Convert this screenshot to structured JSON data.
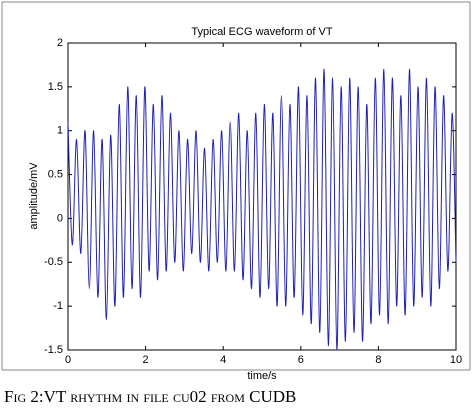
{
  "chart_data": {
    "type": "line",
    "title": "Typical ECG waveform of VT",
    "x_label": "time/s",
    "y_label": "amplitude/mV",
    "color": "#1f1fb4",
    "x": [
      0,
      0.11,
      0.22,
      0.33,
      0.44,
      0.55,
      0.66,
      0.77,
      0.88,
      0.99,
      1.1,
      1.21,
      1.32,
      1.43,
      1.54,
      1.65,
      1.76,
      1.87,
      1.98,
      2.09,
      2.2,
      2.31,
      2.42,
      2.53,
      2.64,
      2.75,
      2.86,
      2.97,
      3.08,
      3.19,
      3.3,
      3.41,
      3.52,
      3.63,
      3.74,
      3.85,
      3.96,
      4.07,
      4.18,
      4.29,
      4.4,
      4.51,
      4.62,
      4.73,
      4.84,
      4.95,
      5.06,
      5.17,
      5.28,
      5.39,
      5.5,
      5.61,
      5.72,
      5.83,
      5.94,
      6.05,
      6.16,
      6.27,
      6.38,
      6.49,
      6.6,
      6.71,
      6.82,
      6.93,
      7.04,
      7.15,
      7.26,
      7.37,
      7.48,
      7.59,
      7.7,
      7.81,
      7.92,
      8.03,
      8.14,
      8.25,
      8.36,
      8.47,
      8.58,
      8.69,
      8.8,
      8.91,
      9.02,
      9.13,
      9.24,
      9.35,
      9.46,
      9.57,
      9.68,
      9.79,
      9.9,
      10
    ],
    "values": [
      1.1,
      -0.3,
      0.9,
      -0.4,
      1.0,
      -0.8,
      1.0,
      -0.9,
      0.9,
      -1.15,
      0.95,
      -1.0,
      1.3,
      -0.9,
      1.5,
      -0.8,
      1.4,
      -0.9,
      1.5,
      -0.6,
      1.3,
      -0.7,
      1.4,
      -0.6,
      1.2,
      -0.5,
      1.0,
      -0.6,
      0.9,
      -0.4,
      1.0,
      -0.5,
      0.8,
      -0.6,
      0.9,
      -0.5,
      1.0,
      -0.6,
      1.1,
      -0.6,
      1.2,
      -0.7,
      1.0,
      -0.8,
      1.2,
      -0.9,
      1.3,
      -0.8,
      1.2,
      -1.0,
      1.4,
      -1.0,
      1.3,
      -0.9,
      1.5,
      -1.1,
      1.4,
      -1.2,
      1.6,
      -1.3,
      1.7,
      -1.45,
      1.6,
      -1.5,
      1.5,
      -1.4,
      1.6,
      -1.3,
      1.5,
      -1.4,
      1.3,
      -1.2,
      1.6,
      -1.1,
      1.7,
      -1.2,
      1.6,
      -1.0,
      1.4,
      -1.1,
      1.7,
      -1.0,
      1.5,
      -0.9,
      1.6,
      -1.0,
      1.5,
      -0.8,
      1.4,
      -0.6,
      1.2,
      -0.5
    ],
    "xlim": [
      0,
      10
    ],
    "xticks": [
      0,
      2,
      4,
      6,
      8,
      10
    ],
    "ylim": [
      -1.5,
      2
    ],
    "yticks": [
      -1.5,
      -1,
      -0.5,
      0,
      0.5,
      1,
      1.5,
      2
    ]
  },
  "caption": "Fig 2:VT rhythm in file cu02 from CUDB"
}
